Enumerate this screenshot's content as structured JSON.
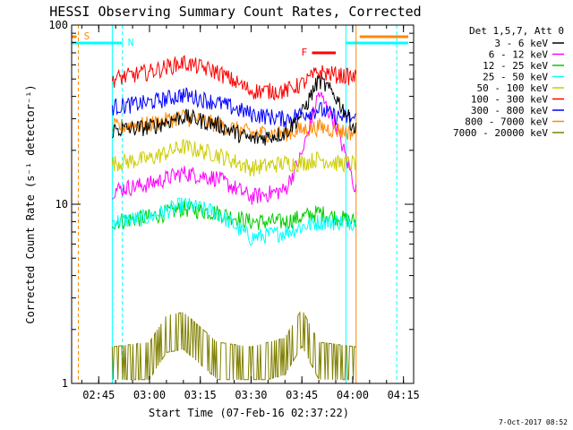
{
  "chart_data": {
    "type": "line",
    "title": "HESSI Observing Summary Count Rates, Corrected",
    "xlabel": "Start Time (07-Feb-16 02:37:22)",
    "ylabel": "Corrected Count Rate (s⁻¹ detector⁻¹)",
    "yscale": "log",
    "ylim": [
      1,
      100
    ],
    "xlim": [
      "02:37",
      "04:18"
    ],
    "x_ticks": [
      "02:45",
      "03:00",
      "03:15",
      "03:30",
      "03:45",
      "04:00",
      "04:15"
    ],
    "y_ticks": [
      "1",
      "10",
      "100"
    ],
    "legend_header": "Det 1,5,7, Att 0",
    "legend_placement": "right",
    "data_start": "02:49",
    "data_end": "04:01",
    "series": [
      {
        "name": "3 - 6 keV",
        "color": "#000000",
        "x": [
          "02:49",
          "03:00",
          "03:10",
          "03:20",
          "03:30",
          "03:40",
          "03:45",
          "03:50",
          "03:55",
          "04:01"
        ],
        "values": [
          26,
          27,
          31,
          28,
          23,
          25,
          32,
          50,
          40,
          26
        ]
      },
      {
        "name": "6 - 12 keV",
        "color": "#ff00ff",
        "x": [
          "02:49",
          "03:00",
          "03:10",
          "03:20",
          "03:30",
          "03:40",
          "03:45",
          "03:50",
          "03:55",
          "04:01"
        ],
        "values": [
          12,
          13,
          15,
          14,
          11,
          12,
          19,
          42,
          28,
          12
        ]
      },
      {
        "name": "12 - 25 keV",
        "color": "#00cc00",
        "x": [
          "02:49",
          "03:00",
          "03:10",
          "03:20",
          "03:30",
          "03:40",
          "03:45",
          "03:50",
          "03:55",
          "04:01"
        ],
        "values": [
          8,
          8.5,
          9.5,
          9,
          8,
          8,
          8.5,
          9,
          8.5,
          8
        ]
      },
      {
        "name": "25 - 50 keV",
        "color": "#00ffff",
        "x": [
          "02:49",
          "03:00",
          "03:10",
          "03:20",
          "03:30",
          "03:40",
          "03:45",
          "03:50",
          "03:55",
          "04:01"
        ],
        "values": [
          8,
          8.5,
          10,
          9,
          6.5,
          7,
          7.5,
          8,
          8,
          8
        ]
      },
      {
        "name": "50 - 100 keV",
        "color": "#cccc00",
        "x": [
          "02:49",
          "03:00",
          "03:10",
          "03:20",
          "03:30",
          "03:40",
          "03:45",
          "03:50",
          "03:55",
          "04:01"
        ],
        "values": [
          17,
          18,
          21,
          19,
          16,
          17,
          17,
          18,
          17,
          17
        ]
      },
      {
        "name": "100 - 300 keV",
        "color": "#ff0000",
        "x": [
          "02:49",
          "03:00",
          "03:10",
          "03:20",
          "03:30",
          "03:40",
          "03:45",
          "03:50",
          "03:55",
          "04:01"
        ],
        "values": [
          50,
          55,
          62,
          55,
          43,
          43,
          47,
          55,
          53,
          51
        ]
      },
      {
        "name": "300 - 800 keV",
        "color": "#0000ff",
        "x": [
          "02:49",
          "03:00",
          "03:10",
          "03:20",
          "03:30",
          "03:40",
          "03:45",
          "03:50",
          "03:55",
          "04:01"
        ],
        "values": [
          35,
          37,
          41,
          37,
          32,
          30,
          32,
          34,
          31,
          30
        ]
      },
      {
        "name": "800 - 7000 keV",
        "color": "#ff8800",
        "x": [
          "02:49",
          "03:00",
          "03:10",
          "03:20",
          "03:30",
          "03:40",
          "03:45",
          "03:50",
          "03:55",
          "04:01"
        ],
        "values": [
          27,
          28,
          31,
          28,
          25,
          25,
          26,
          27,
          26,
          25
        ]
      },
      {
        "name": "7000 - 20000 keV",
        "color": "#808000",
        "x": [
          "02:49",
          "03:00",
          "03:05",
          "03:10",
          "03:20",
          "03:30",
          "03:40",
          "03:45",
          "03:50",
          "04:01"
        ],
        "values": [
          1.6,
          1.7,
          2.4,
          2.5,
          1.7,
          1.6,
          1.8,
          2.6,
          1.7,
          1.6
        ]
      }
    ],
    "markers": [
      {
        "label": "S",
        "color": "#ff8800",
        "x": "02:39"
      },
      {
        "label": "N",
        "color": "#00ffff",
        "x": "02:52"
      },
      {
        "label": "F",
        "color": "#ff0000",
        "x": "03:51"
      }
    ]
  },
  "footer_text": "7-Oct-2017 08:52"
}
